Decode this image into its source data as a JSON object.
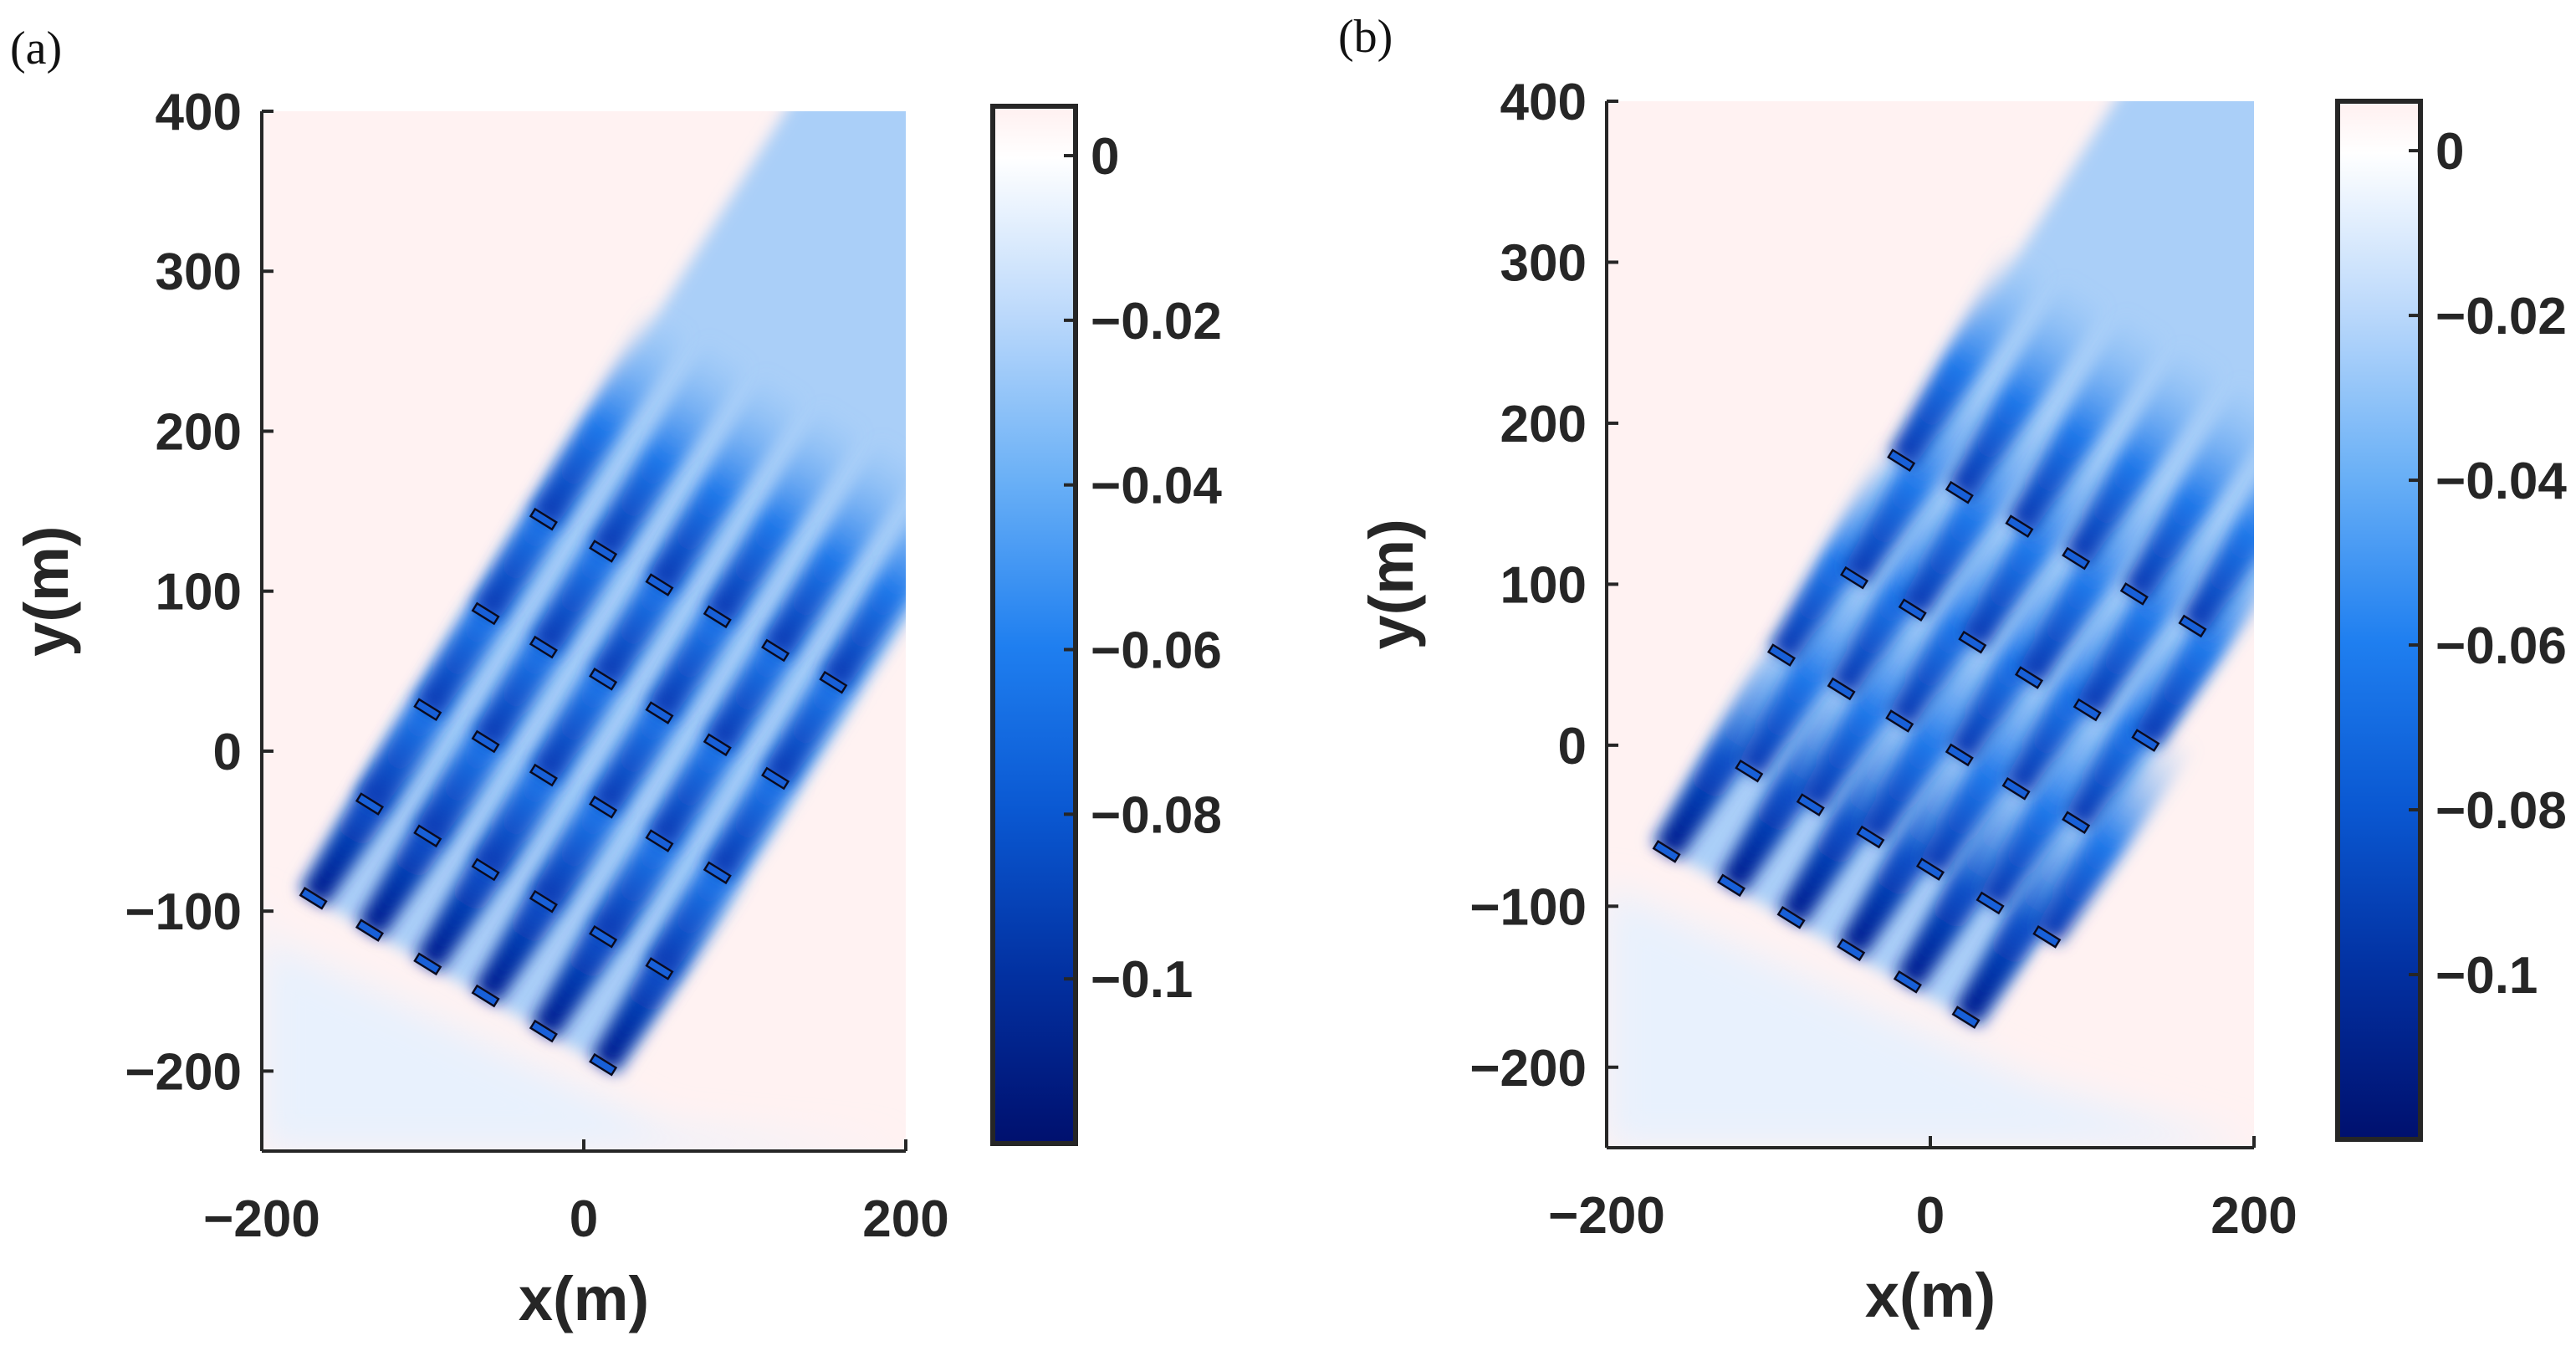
{
  "chart_data": [
    {
      "type": "heatmap",
      "panel_label": "(a)",
      "xlabel": "x(m)",
      "ylabel": "y(m)",
      "xlim": [
        -200,
        200
      ],
      "ylim": [
        -250,
        400
      ],
      "xticks": [
        -200,
        0,
        200
      ],
      "xtick_labels": [
        "−200",
        "0",
        "200"
      ],
      "yticks": [
        -200,
        -100,
        0,
        100,
        200,
        300,
        400
      ],
      "ytick_labels": [
        "−200",
        "−100",
        "0",
        "100",
        "200",
        "300",
        "400"
      ],
      "colorbar": {
        "range": [
          -0.12,
          0.006
        ],
        "ticks": [
          0,
          -0.02,
          -0.04,
          -0.06,
          -0.08,
          -0.1
        ],
        "tick_labels": [
          "0",
          "−0.02",
          "−0.04",
          "−0.06",
          "−0.08",
          "−0.1"
        ]
      },
      "wind_angle_deg": 32,
      "turbine_rows": [
        [
          [
            -168,
            -92
          ],
          [
            -133,
            -112
          ],
          [
            -97,
            -133
          ],
          [
            -61,
            -153
          ],
          [
            -25,
            -175
          ],
          [
            12,
            -196
          ]
        ],
        [
          [
            -133,
            -33
          ],
          [
            -97,
            -53
          ],
          [
            -61,
            -74
          ],
          [
            -25,
            -94
          ],
          [
            12,
            -116
          ],
          [
            47,
            -136
          ]
        ],
        [
          [
            -97,
            26
          ],
          [
            -61,
            6
          ],
          [
            -25,
            -15
          ],
          [
            12,
            -35
          ],
          [
            47,
            -56
          ],
          [
            83,
            -76
          ]
        ],
        [
          [
            -61,
            86
          ],
          [
            -25,
            65
          ],
          [
            12,
            45
          ],
          [
            47,
            24
          ],
          [
            83,
            4
          ],
          [
            119,
            -17
          ]
        ],
        [
          [
            -25,
            145
          ],
          [
            12,
            125
          ],
          [
            47,
            104
          ],
          [
            83,
            84
          ],
          [
            119,
            63
          ],
          [
            155,
            43
          ]
        ]
      ]
    },
    {
      "type": "heatmap",
      "panel_label": "(b)",
      "xlabel": "x(m)",
      "ylabel": "y(m)",
      "xlim": [
        -200,
        200
      ],
      "ylim": [
        -250,
        400
      ],
      "xticks": [
        -200,
        0,
        200
      ],
      "xtick_labels": [
        "−200",
        "0",
        "200"
      ],
      "yticks": [
        -200,
        -100,
        0,
        100,
        200,
        300,
        400
      ],
      "ytick_labels": [
        "−200",
        "−100",
        "0",
        "100",
        "200",
        "300",
        "400"
      ],
      "colorbar": {
        "range": [
          -0.12,
          0.006
        ],
        "ticks": [
          0,
          -0.02,
          -0.04,
          -0.06,
          -0.08,
          -0.1
        ],
        "tick_labels": [
          "0",
          "−0.02",
          "−0.04",
          "−0.06",
          "−0.08",
          "−0.1"
        ]
      },
      "wind_angle_deg": 32,
      "turbine_rows": [
        [
          [
            -163,
            -66
          ],
          [
            -123,
            -87
          ],
          [
            -86,
            -107
          ],
          [
            -49,
            -127
          ],
          [
            -14,
            -147
          ],
          [
            22,
            -169
          ]
        ],
        [
          [
            -112,
            -16
          ],
          [
            -74,
            -37
          ],
          [
            -37,
            -57
          ],
          [
            0,
            -77
          ],
          [
            37,
            -98
          ],
          [
            72,
            -119
          ]
        ],
        [
          [
            -92,
            56
          ],
          [
            -55,
            35
          ],
          [
            -19,
            15
          ],
          [
            18,
            -6
          ],
          [
            53,
            -27
          ],
          [
            90,
            -48
          ]
        ],
        [
          [
            -47,
            104
          ],
          [
            -11,
            84
          ],
          [
            26,
            64
          ],
          [
            61,
            42
          ],
          [
            97,
            22
          ],
          [
            133,
            3
          ]
        ],
        [
          [
            -18,
            177
          ],
          [
            18,
            157
          ],
          [
            55,
            136
          ],
          [
            90,
            116
          ],
          [
            126,
            94
          ],
          [
            162,
            74
          ]
        ]
      ]
    }
  ]
}
